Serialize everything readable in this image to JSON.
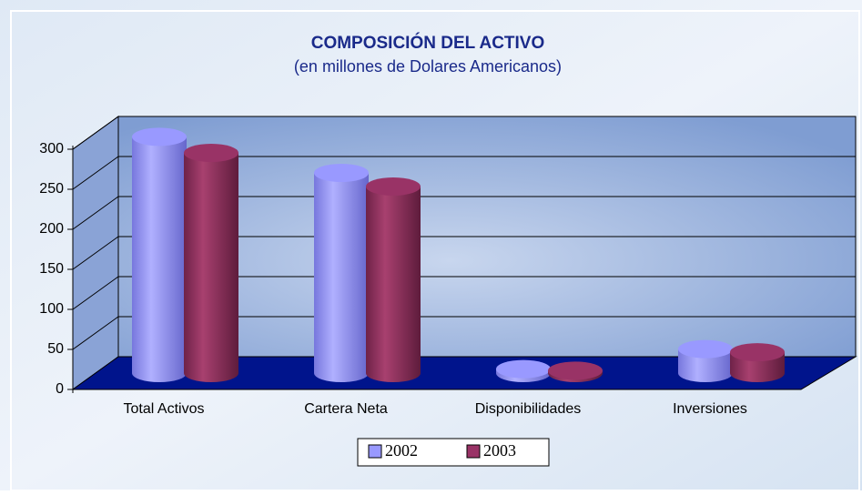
{
  "chart_data": {
    "type": "bar3d",
    "title": "COMPOSICIÓN DEL ACTIVO",
    "subtitle": "(en millones de Dolares Americanos)",
    "categories": [
      "Total Activos",
      "Cartera Neta",
      "Disponibilidades",
      "Inversiones"
    ],
    "series": [
      {
        "name": "2002",
        "color": "#9999ff",
        "values": [
          295,
          250,
          5,
          30
        ]
      },
      {
        "name": "2003",
        "color": "#993366",
        "values": [
          275,
          233,
          3,
          26
        ]
      }
    ],
    "ylim": [
      0,
      300
    ],
    "yticks": [
      0,
      50,
      100,
      150,
      200,
      250,
      300
    ],
    "grid": true
  }
}
